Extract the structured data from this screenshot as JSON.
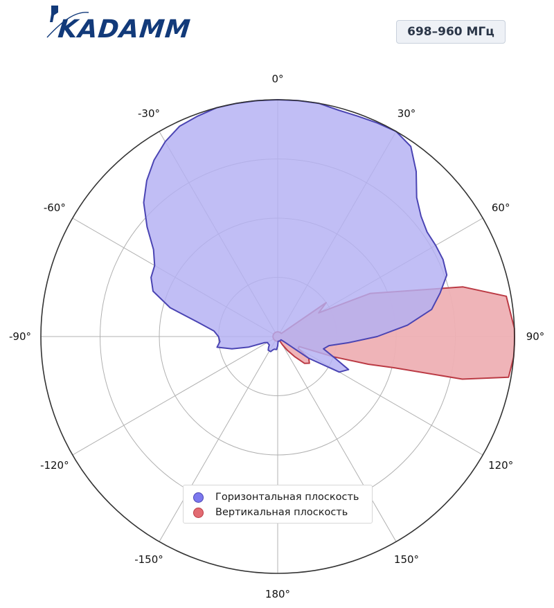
{
  "logo": {
    "text": "KADAMM"
  },
  "frequency_badge": "698–960 МГц",
  "colors": {
    "horizontal_fill": "#b3b0f3",
    "horizontal_stroke": "#4a44b3",
    "vertical_fill": "#eeb0b4",
    "vertical_stroke": "#bb3a44",
    "grid": "#b0b0b0",
    "outer_ring": "#333333"
  },
  "chart_data": {
    "type": "polar_area",
    "angle_direction": "clockwise",
    "zero_at": "top",
    "r_range": [
      0,
      1
    ],
    "r_gridlines": [
      0.25,
      0.5,
      0.75,
      1.0
    ],
    "angle_ticks": [
      "0°",
      "30°",
      "60°",
      "90°",
      "120°",
      "150°",
      "180°",
      "-150°",
      "-120°",
      "-90°",
      "-60°",
      "-30°"
    ],
    "grid": true,
    "legend_position": "bottom-center",
    "series": [
      {
        "name": "Горизонтальная плоскость",
        "angles_deg": [
          -100,
          -95,
          -90,
          -85,
          -80,
          -75,
          -70,
          -65,
          -60,
          -55,
          -50,
          -45,
          -40,
          -35,
          -30,
          -25,
          -20,
          -15,
          -10,
          -5,
          0,
          5,
          10,
          15,
          20,
          25,
          30,
          35,
          40,
          45,
          50,
          55,
          60,
          65,
          70,
          75,
          80,
          85,
          90,
          95,
          100,
          105,
          110,
          115,
          120,
          125,
          130,
          135,
          140,
          145,
          150,
          155,
          160,
          165,
          170,
          175,
          180,
          185,
          190,
          195,
          200,
          205,
          210,
          215,
          220,
          225,
          230,
          235,
          240,
          245,
          250,
          255,
          260
        ],
        "r": [
          0.26,
          0.245,
          0.25,
          0.27,
          0.34,
          0.47,
          0.56,
          0.59,
          0.6,
          0.64,
          0.72,
          0.8,
          0.86,
          0.91,
          0.95,
          0.98,
          0.99,
          1.0,
          1.0,
          1.0,
          1.0,
          1.0,
          1.0,
          0.99,
          0.99,
          0.995,
          1.0,
          0.98,
          0.91,
          0.83,
          0.79,
          0.77,
          0.77,
          0.77,
          0.76,
          0.71,
          0.66,
          0.55,
          0.42,
          0.3,
          0.22,
          0.2,
          0.25,
          0.33,
          0.3,
          0.16,
          0.03,
          0.02,
          0.02,
          0.02,
          0.02,
          0.02,
          0.02,
          0.02,
          0.02,
          0.02,
          0.04,
          0.055,
          0.055,
          0.055,
          0.06,
          0.07,
          0.07,
          0.07,
          0.06,
          0.05,
          0.05,
          0.05,
          0.05,
          0.06,
          0.13,
          0.2,
          0.26
        ]
      },
      {
        "name": "Вертикальная плоскость",
        "angles_deg": [
          0,
          10,
          20,
          30,
          40,
          50,
          55,
          60,
          65,
          70,
          75,
          80,
          85,
          88,
          90,
          92,
          95,
          100,
          103,
          105,
          107,
          110,
          115,
          120,
          125,
          130,
          135,
          140,
          145,
          150,
          155,
          160,
          165,
          170,
          175,
          180,
          185,
          190,
          195,
          200,
          210,
          220,
          230,
          240,
          250,
          260,
          270,
          280,
          290,
          300,
          310,
          320,
          330,
          340,
          350,
          360
        ],
        "r": [
          0.02,
          0.02,
          0.02,
          0.02,
          0.02,
          0.02,
          0.25,
          0.2,
          0.43,
          0.56,
          0.81,
          0.98,
          0.99,
          1.0,
          1.0,
          1.0,
          1.0,
          0.99,
          0.8,
          0.51,
          0.4,
          0.25,
          0.1,
          0.1,
          0.16,
          0.175,
          0.16,
          0.11,
          0.07,
          0.04,
          0.02,
          0.02,
          0.02,
          0.02,
          0.02,
          0.02,
          0.02,
          0.02,
          0.02,
          0.02,
          0.02,
          0.02,
          0.02,
          0.02,
          0.02,
          0.02,
          0.02,
          0.02,
          0.02,
          0.02,
          0.02,
          0.02,
          0.02,
          0.02,
          0.02,
          0.02
        ]
      }
    ]
  }
}
